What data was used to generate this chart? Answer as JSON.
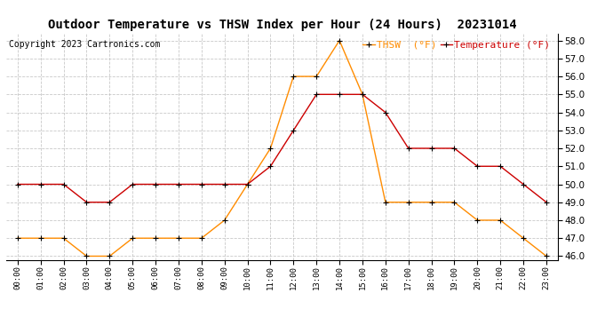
{
  "title": "Outdoor Temperature vs THSW Index per Hour (24 Hours)  20231014",
  "copyright": "Copyright 2023 Cartronics.com",
  "legend_thsw": "THSW  (°F)",
  "legend_temp": "Temperature (°F)",
  "hours": [
    "00:00",
    "01:00",
    "02:00",
    "03:00",
    "04:00",
    "05:00",
    "06:00",
    "07:00",
    "08:00",
    "09:00",
    "10:00",
    "11:00",
    "12:00",
    "13:00",
    "14:00",
    "15:00",
    "16:00",
    "17:00",
    "18:00",
    "19:00",
    "20:00",
    "21:00",
    "22:00",
    "23:00"
  ],
  "temperature": [
    50.0,
    50.0,
    50.0,
    49.0,
    49.0,
    50.0,
    50.0,
    50.0,
    50.0,
    50.0,
    50.0,
    51.0,
    53.0,
    55.0,
    55.0,
    55.0,
    54.0,
    52.0,
    52.0,
    52.0,
    51.0,
    51.0,
    50.0,
    49.0
  ],
  "thsw": [
    47.0,
    47.0,
    47.0,
    46.0,
    46.0,
    47.0,
    47.0,
    47.0,
    47.0,
    48.0,
    50.0,
    52.0,
    56.0,
    56.0,
    58.0,
    55.0,
    49.0,
    49.0,
    49.0,
    49.0,
    48.0,
    48.0,
    47.0,
    46.0
  ],
  "ylim_min": 45.8,
  "ylim_max": 58.4,
  "yticks": [
    46.0,
    47.0,
    48.0,
    49.0,
    50.0,
    51.0,
    52.0,
    53.0,
    54.0,
    55.0,
    56.0,
    57.0,
    58.0
  ],
  "temp_color": "#cc0000",
  "thsw_color": "#ff8c00",
  "background_color": "#ffffff",
  "grid_color": "#bbbbbb",
  "title_fontsize": 10,
  "copyright_fontsize": 7,
  "legend_fontsize": 8
}
